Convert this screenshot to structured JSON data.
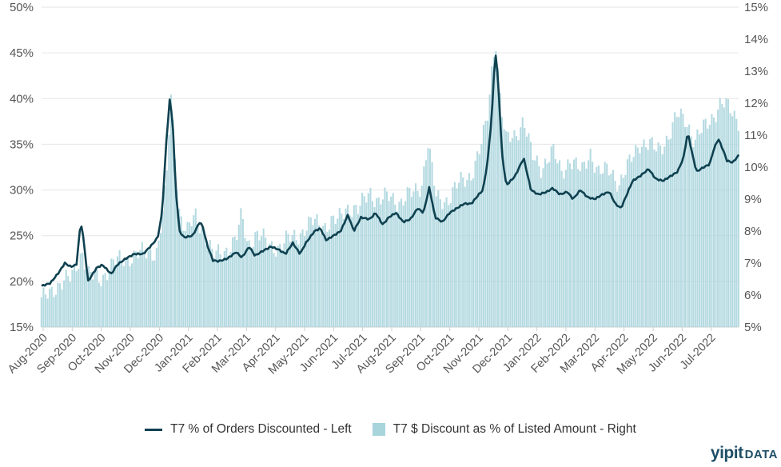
{
  "chart_data": {
    "type": "bar+line",
    "categories": [
      "Aug-2020",
      "Sep-2020",
      "Oct-2020",
      "Nov-2020",
      "Dec-2020",
      "Jan-2021",
      "Feb-2021",
      "Mar-2021",
      "Apr-2021",
      "May-2021",
      "Jun-2021",
      "Jul-2021",
      "Aug-2021",
      "Sep-2021",
      "Oct-2021",
      "Nov-2021",
      "Dec-2021",
      "Jan-2022",
      "Feb-2022",
      "Mar-2022",
      "Apr-2022",
      "May-2022",
      "Jun-2022",
      "Jul-2022"
    ],
    "left_axis": {
      "ticks": [
        "15%",
        "20%",
        "25%",
        "30%",
        "35%",
        "40%",
        "45%",
        "50%"
      ],
      "ylim": [
        15,
        50
      ]
    },
    "right_axis": {
      "ticks": [
        "5%",
        "6%",
        "7%",
        "8%",
        "9%",
        "10%",
        "11%",
        "12%",
        "13%",
        "14%",
        "15%"
      ],
      "ylim": [
        5,
        15
      ]
    },
    "series": [
      {
        "name": "T7 % of Orders Discounted - Left",
        "kind": "line",
        "axis": "left",
        "color": "#0f4150",
        "points": [
          [
            0,
            19.5
          ],
          [
            0.3,
            19.8
          ],
          [
            0.6,
            21.0
          ],
          [
            0.8,
            22.0
          ],
          [
            1.0,
            21.6
          ],
          [
            1.2,
            21.8
          ],
          [
            1.35,
            26.6
          ],
          [
            1.45,
            24.5
          ],
          [
            1.6,
            20.0
          ],
          [
            1.9,
            21.5
          ],
          [
            2.1,
            21.8
          ],
          [
            2.4,
            20.8
          ],
          [
            2.6,
            21.8
          ],
          [
            2.9,
            22.5
          ],
          [
            3.2,
            23.0
          ],
          [
            3.5,
            23.0
          ],
          [
            3.8,
            24.0
          ],
          [
            4.0,
            24.8
          ],
          [
            4.15,
            27.5
          ],
          [
            4.3,
            35.5
          ],
          [
            4.42,
            40.2
          ],
          [
            4.52,
            37.0
          ],
          [
            4.62,
            30.0
          ],
          [
            4.75,
            25.5
          ],
          [
            4.9,
            24.8
          ],
          [
            5.2,
            25.0
          ],
          [
            5.45,
            26.5
          ],
          [
            5.55,
            26.0
          ],
          [
            5.7,
            24.0
          ],
          [
            5.9,
            22.3
          ],
          [
            6.1,
            22.2
          ],
          [
            6.4,
            22.5
          ],
          [
            6.7,
            23.2
          ],
          [
            6.9,
            22.6
          ],
          [
            7.15,
            23.8
          ],
          [
            7.35,
            22.8
          ],
          [
            7.6,
            23.3
          ],
          [
            7.9,
            23.8
          ],
          [
            8.15,
            23.5
          ],
          [
            8.4,
            23.0
          ],
          [
            8.65,
            24.2
          ],
          [
            8.9,
            23.0
          ],
          [
            9.1,
            24.2
          ],
          [
            9.4,
            25.5
          ],
          [
            9.6,
            25.8
          ],
          [
            9.8,
            24.5
          ],
          [
            10.05,
            25.0
          ],
          [
            10.3,
            25.5
          ],
          [
            10.55,
            27.3
          ],
          [
            10.75,
            25.5
          ],
          [
            11.0,
            27.0
          ],
          [
            11.3,
            26.8
          ],
          [
            11.5,
            27.5
          ],
          [
            11.75,
            26.2
          ],
          [
            11.95,
            27.0
          ],
          [
            12.2,
            27.5
          ],
          [
            12.45,
            26.5
          ],
          [
            12.7,
            26.8
          ],
          [
            12.95,
            28.0
          ],
          [
            13.15,
            27.5
          ],
          [
            13.35,
            30.3
          ],
          [
            13.55,
            27.0
          ],
          [
            13.8,
            26.5
          ],
          [
            14.05,
            27.5
          ],
          [
            14.3,
            28.0
          ],
          [
            14.55,
            28.5
          ],
          [
            14.8,
            28.5
          ],
          [
            15.05,
            29.5
          ],
          [
            15.2,
            30.0
          ],
          [
            15.35,
            33.0
          ],
          [
            15.5,
            38.0
          ],
          [
            15.62,
            45.3
          ],
          [
            15.72,
            42.0
          ],
          [
            15.85,
            34.0
          ],
          [
            16.0,
            30.5
          ],
          [
            16.3,
            31.5
          ],
          [
            16.6,
            33.5
          ],
          [
            16.85,
            30.0
          ],
          [
            17.1,
            29.5
          ],
          [
            17.4,
            29.8
          ],
          [
            17.6,
            30.2
          ],
          [
            17.85,
            29.5
          ],
          [
            18.1,
            29.8
          ],
          [
            18.3,
            29.0
          ],
          [
            18.55,
            30.0
          ],
          [
            18.8,
            29.2
          ],
          [
            19.05,
            29.0
          ],
          [
            19.3,
            29.5
          ],
          [
            19.55,
            29.8
          ],
          [
            19.75,
            28.5
          ],
          [
            19.95,
            28.0
          ],
          [
            20.15,
            29.5
          ],
          [
            20.35,
            31.0
          ],
          [
            20.6,
            31.5
          ],
          [
            20.9,
            32.3
          ],
          [
            21.15,
            31.2
          ],
          [
            21.4,
            31.0
          ],
          [
            21.65,
            31.5
          ],
          [
            21.9,
            32.0
          ],
          [
            22.1,
            33.5
          ],
          [
            22.25,
            36.3
          ],
          [
            22.4,
            34.0
          ],
          [
            22.55,
            32.0
          ],
          [
            22.8,
            32.5
          ],
          [
            23.0,
            32.8
          ],
          [
            23.15,
            34.5
          ],
          [
            23.3,
            35.6
          ],
          [
            23.45,
            34.5
          ],
          [
            23.6,
            33.2
          ],
          [
            23.8,
            33.0
          ],
          [
            24.0,
            33.8
          ]
        ]
      },
      {
        "name": "T7 $ Discount as % of Listed Amount - Right",
        "kind": "bar",
        "axis": "right",
        "color": "#a8d4dc",
        "points": [
          [
            0,
            5.8
          ],
          [
            0.5,
            6.3
          ],
          [
            1.0,
            6.5
          ],
          [
            1.4,
            7.4
          ],
          [
            1.6,
            6.6
          ],
          [
            2.0,
            6.5
          ],
          [
            2.5,
            7.0
          ],
          [
            3.0,
            7.2
          ],
          [
            3.5,
            7.3
          ],
          [
            4.0,
            7.4
          ],
          [
            4.3,
            9.4
          ],
          [
            4.45,
            12.3
          ],
          [
            4.6,
            10.5
          ],
          [
            4.75,
            8.6
          ],
          [
            5.0,
            7.9
          ],
          [
            5.3,
            8.5
          ],
          [
            5.6,
            8.0
          ],
          [
            5.9,
            7.2
          ],
          [
            6.3,
            7.4
          ],
          [
            6.7,
            7.7
          ],
          [
            6.9,
            8.5
          ],
          [
            7.1,
            7.6
          ],
          [
            7.4,
            7.9
          ],
          [
            7.8,
            7.6
          ],
          [
            8.2,
            7.5
          ],
          [
            8.6,
            7.8
          ],
          [
            9.0,
            8.0
          ],
          [
            9.4,
            8.3
          ],
          [
            9.8,
            8.2
          ],
          [
            10.2,
            8.3
          ],
          [
            10.5,
            8.8
          ],
          [
            10.9,
            8.6
          ],
          [
            11.3,
            9.3
          ],
          [
            11.6,
            8.9
          ],
          [
            12.0,
            9.1
          ],
          [
            12.4,
            8.9
          ],
          [
            12.8,
            9.2
          ],
          [
            13.1,
            9.5
          ],
          [
            13.3,
            10.8
          ],
          [
            13.6,
            9.0
          ],
          [
            14.0,
            9.0
          ],
          [
            14.4,
            9.5
          ],
          [
            14.8,
            9.8
          ],
          [
            15.1,
            10.5
          ],
          [
            15.35,
            11.5
          ],
          [
            15.55,
            13.5
          ],
          [
            15.65,
            14.0
          ],
          [
            15.8,
            12.0
          ],
          [
            16.0,
            10.8
          ],
          [
            16.3,
            11.0
          ],
          [
            16.6,
            11.5
          ],
          [
            16.9,
            10.3
          ],
          [
            17.2,
            10.0
          ],
          [
            17.6,
            10.5
          ],
          [
            17.9,
            9.8
          ],
          [
            18.2,
            10.3
          ],
          [
            18.6,
            9.8
          ],
          [
            18.9,
            10.5
          ],
          [
            19.2,
            9.8
          ],
          [
            19.6,
            9.9
          ],
          [
            19.9,
            9.5
          ],
          [
            20.2,
            10.0
          ],
          [
            20.6,
            10.8
          ],
          [
            20.9,
            10.7
          ],
          [
            21.2,
            10.5
          ],
          [
            21.6,
            11.0
          ],
          [
            21.9,
            11.6
          ],
          [
            22.2,
            11.5
          ],
          [
            22.5,
            10.8
          ],
          [
            22.8,
            11.2
          ],
          [
            23.1,
            11.6
          ],
          [
            23.4,
            12.0
          ],
          [
            23.7,
            11.8
          ],
          [
            24.0,
            11.5
          ]
        ]
      }
    ],
    "legend_position": "bottom-center",
    "grid": true
  },
  "brand": {
    "main": "yipit",
    "sub": "DATA"
  }
}
